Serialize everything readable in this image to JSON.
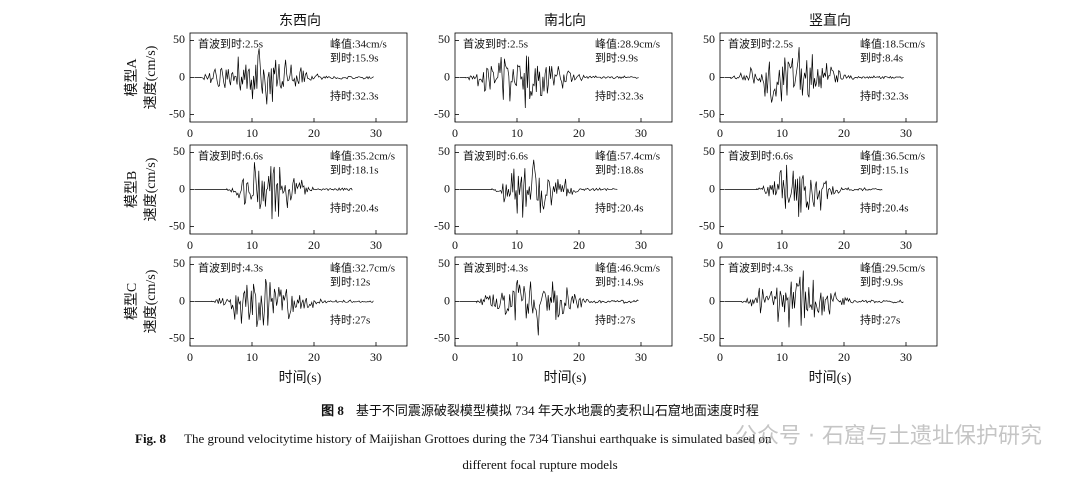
{
  "columns": [
    "东西向",
    "南北向",
    "竖直向"
  ],
  "rows": [
    {
      "model": "模型A",
      "ylabel": "速度(cm/s)"
    },
    {
      "model": "模型B",
      "ylabel": "速度(cm/s)"
    },
    {
      "model": "模型C",
      "ylabel": "速度(cm/s)"
    }
  ],
  "x_label": "时间(s)",
  "chart_data": [
    {
      "type": "line",
      "xlim": [
        0,
        35
      ],
      "ylim": [
        -60,
        60
      ],
      "xticks": [
        0,
        10,
        20,
        30
      ],
      "yticks": [
        -50,
        0,
        50
      ],
      "annotations": {
        "arrival": "首波到时:2.5s",
        "peak": "峰值:34cm/s",
        "peak_time": "到时:15.9s",
        "duration": "持时:32.3s"
      }
    },
    {
      "type": "line",
      "xlim": [
        0,
        35
      ],
      "ylim": [
        -60,
        60
      ],
      "xticks": [
        0,
        10,
        20,
        30
      ],
      "yticks": [
        -50,
        0,
        50
      ],
      "annotations": {
        "arrival": "首波到时:2.5s",
        "peak": "峰值:28.9cm/s",
        "peak_time": "到时:9.9s",
        "duration": "持时:32.3s"
      }
    },
    {
      "type": "line",
      "xlim": [
        0,
        35
      ],
      "ylim": [
        -60,
        60
      ],
      "xticks": [
        0,
        10,
        20,
        30
      ],
      "yticks": [
        -50,
        0,
        50
      ],
      "annotations": {
        "arrival": "首波到时:2.5s",
        "peak": "峰值:18.5cm/s",
        "peak_time": "到时:8.4s",
        "duration": "持时:32.3s"
      }
    },
    {
      "type": "line",
      "xlim": [
        0,
        35
      ],
      "ylim": [
        -60,
        60
      ],
      "xticks": [
        0,
        10,
        20,
        30
      ],
      "yticks": [
        -50,
        0,
        50
      ],
      "annotations": {
        "arrival": "首波到时:6.6s",
        "peak": "峰值:35.2cm/s",
        "peak_time": "到时:18.1s",
        "duration": "持时:20.4s"
      }
    },
    {
      "type": "line",
      "xlim": [
        0,
        35
      ],
      "ylim": [
        -60,
        60
      ],
      "xticks": [
        0,
        10,
        20,
        30
      ],
      "yticks": [
        -50,
        0,
        50
      ],
      "annotations": {
        "arrival": "首波到时:6.6s",
        "peak": "峰值:57.4cm/s",
        "peak_time": "到时:18.8s",
        "duration": "持时:20.4s"
      }
    },
    {
      "type": "line",
      "xlim": [
        0,
        35
      ],
      "ylim": [
        -60,
        60
      ],
      "xticks": [
        0,
        10,
        20,
        30
      ],
      "yticks": [
        -50,
        0,
        50
      ],
      "annotations": {
        "arrival": "首波到时:6.6s",
        "peak": "峰值:36.5cm/s",
        "peak_time": "到时:15.1s",
        "duration": "持时:20.4s"
      }
    },
    {
      "type": "line",
      "xlim": [
        0,
        35
      ],
      "ylim": [
        -60,
        60
      ],
      "xticks": [
        0,
        10,
        20,
        30
      ],
      "yticks": [
        -50,
        0,
        50
      ],
      "annotations": {
        "arrival": "首波到时:4.3s",
        "peak": "峰值:32.7cm/s",
        "peak_time": "到时:12s",
        "duration": "持时:27s"
      }
    },
    {
      "type": "line",
      "xlim": [
        0,
        35
      ],
      "ylim": [
        -60,
        60
      ],
      "xticks": [
        0,
        10,
        20,
        30
      ],
      "yticks": [
        -50,
        0,
        50
      ],
      "annotations": {
        "arrival": "首波到时:4.3s",
        "peak": "峰值:46.9cm/s",
        "peak_time": "到时:14.9s",
        "duration": "持时:27s"
      }
    },
    {
      "type": "line",
      "xlim": [
        0,
        35
      ],
      "ylim": [
        -60,
        60
      ],
      "xticks": [
        0,
        10,
        20,
        30
      ],
      "yticks": [
        -50,
        0,
        50
      ],
      "annotations": {
        "arrival": "首波到时:4.3s",
        "peak": "峰值:29.5cm/s",
        "peak_time": "到时:9.9s",
        "duration": "持时:27s"
      }
    }
  ],
  "caption": {
    "label_zh": "图 8",
    "text_zh": "基于不同震源破裂模型模拟 734 年天水地震的麦积山石窟地面速度时程",
    "label_en": "Fig. 8",
    "text_en_1": "The ground velocitytime history of Maijishan Grottoes during the 734 Tianshui earthquake is simulated based on",
    "text_en_2": "different focal rupture models"
  },
  "watermark": "公众号 · 石窟与土遗址保护研究"
}
